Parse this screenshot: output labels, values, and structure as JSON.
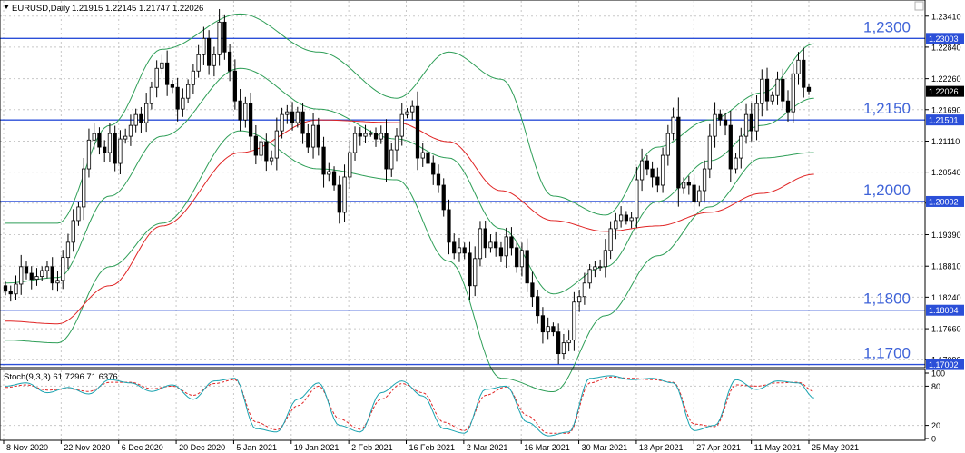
{
  "header": {
    "symbol": "EURUSD,Daily",
    "ohlc": "1.21915 1.22145 1.21747 1.22026"
  },
  "stoch_header": "Stoch(9,3,3) 61.7296 71.6376",
  "colors": {
    "background": "#ffffff",
    "grid": "#c8c8c8",
    "candle": "#000000",
    "level_line": "#2b4fd8",
    "level_text": "#3f63d8",
    "bollinger": "#2e9e57",
    "ma": "#e02424",
    "stoch_main": "#1aa3b0",
    "stoch_signal": "#e02424",
    "price_tag": "#000000"
  },
  "chart_data": {
    "type": "candlestick",
    "symbol": "EURUSD",
    "timeframe": "Daily",
    "price_axis": {
      "ticks": [
        "1.23410",
        "1.22840",
        "1.22260",
        "1.21690",
        "1.21110",
        "1.20540",
        "1.19970",
        "1.19390",
        "1.18810",
        "1.18240",
        "1.17660",
        "1.17090"
      ],
      "range": [
        1.1696,
        1.2369
      ]
    },
    "current_price_label": "1.22026",
    "levels": [
      {
        "price": 1.23,
        "label": "1,2300",
        "tag": "1.23003"
      },
      {
        "price": 1.215,
        "label": "1,2150",
        "tag": "1.21501"
      },
      {
        "price": 1.2,
        "label": "1,2000",
        "tag": "1.20002"
      },
      {
        "price": 1.18,
        "label": "1,1800",
        "tag": "1.18004"
      },
      {
        "price": 1.17,
        "label": "1,1700",
        "tag": "1.17002"
      }
    ],
    "date_labels": [
      "8 Nov 2020",
      "22 Nov 2020",
      "6 Dec 2020",
      "20 Dec 2020",
      "5 Jan 2021",
      "19 Jan 2021",
      "2 Feb 2021",
      "16 Feb 2021",
      "2 Mar 2021",
      "16 Mar 2021",
      "30 Mar 2021",
      "13 Apr 2021",
      "27 Apr 2021",
      "11 May 2021",
      "25 May 2021"
    ],
    "close": [
      1.1835,
      1.183,
      1.1848,
      1.188,
      1.1868,
      1.1857,
      1.1862,
      1.1873,
      1.188,
      1.185,
      1.1855,
      1.1897,
      1.1925,
      1.1965,
      1.199,
      1.206,
      1.2113,
      1.2125,
      1.21,
      1.209,
      1.2125,
      1.207,
      1.2115,
      1.212,
      1.214,
      1.216,
      1.2145,
      1.218,
      1.221,
      1.2245,
      1.2255,
      1.2215,
      1.221,
      1.217,
      1.219,
      1.2215,
      1.224,
      1.227,
      1.23,
      1.225,
      1.227,
      1.233,
      1.2275,
      1.224,
      1.2185,
      1.215,
      1.218,
      1.212,
      1.2085,
      1.211,
      1.2075,
      1.208,
      1.213,
      1.216,
      1.2165,
      1.2145,
      1.2165,
      1.2125,
      1.21,
      1.214,
      1.21,
      1.205,
      1.2055,
      1.203,
      1.198,
      1.2045,
      1.209,
      1.2125,
      1.212,
      1.2125,
      1.2125,
      1.2115,
      1.2125,
      1.206,
      1.2095,
      1.212,
      1.216,
      1.2165,
      1.2175,
      1.208,
      1.209,
      1.207,
      1.205,
      1.203,
      1.1985,
      1.1925,
      1.1905,
      1.1915,
      1.1905,
      1.1845,
      1.1895,
      1.195,
      1.1915,
      1.1925,
      1.1915,
      1.19,
      1.1935,
      1.1915,
      1.188,
      1.191,
      1.185,
      1.1825,
      1.179,
      1.176,
      1.177,
      1.176,
      1.172,
      1.174,
      1.1745,
      1.1815,
      1.1825,
      1.185,
      1.1875,
      1.188,
      1.188,
      1.191,
      1.195,
      1.1965,
      1.1975,
      1.1965,
      1.197,
      1.204,
      1.2075,
      1.206,
      1.2045,
      1.203,
      1.2085,
      1.2125,
      1.2155,
      1.2025,
      1.2035,
      1.203,
      1.2,
      1.202,
      1.206,
      1.212,
      1.216,
      1.215,
      1.214,
      1.206,
      1.208,
      1.212,
      1.216,
      1.213,
      1.218,
      1.2225,
      1.2185,
      1.2195,
      1.2225,
      1.2185,
      1.2165,
      1.2235,
      1.226,
      1.221,
      1.2203
    ],
    "bollinger": {
      "upper": [
        [
          0,
          1.196
        ],
        [
          10,
          1.196
        ],
        [
          20,
          1.214
        ],
        [
          30,
          1.228
        ],
        [
          45,
          1.2345
        ],
        [
          60,
          1.2275
        ],
        [
          75,
          1.219
        ],
        [
          85,
          1.2275
        ],
        [
          95,
          1.2225
        ],
        [
          105,
          1.201
        ],
        [
          115,
          1.1975
        ],
        [
          125,
          1.21
        ],
        [
          135,
          1.215
        ],
        [
          145,
          1.22
        ],
        [
          155,
          1.229
        ]
      ],
      "middle": [
        [
          0,
          1.185
        ],
        [
          10,
          1.186
        ],
        [
          20,
          1.201
        ],
        [
          30,
          1.212
        ],
        [
          45,
          1.2245
        ],
        [
          60,
          1.217
        ],
        [
          75,
          1.2115
        ],
        [
          85,
          1.208
        ],
        [
          95,
          1.195
        ],
        [
          105,
          1.183
        ],
        [
          115,
          1.188
        ],
        [
          125,
          1.2
        ],
        [
          135,
          1.2075
        ],
        [
          145,
          1.214
        ],
        [
          155,
          1.219
        ]
      ],
      "lower": [
        [
          0,
          1.1745
        ],
        [
          10,
          1.174
        ],
        [
          20,
          1.188
        ],
        [
          30,
          1.196
        ],
        [
          45,
          1.213
        ],
        [
          60,
          1.206
        ],
        [
          75,
          1.204
        ],
        [
          85,
          1.189
        ],
        [
          95,
          1.1675
        ],
        [
          105,
          1.165
        ],
        [
          115,
          1.179
        ],
        [
          125,
          1.19
        ],
        [
          135,
          1.199
        ],
        [
          145,
          1.208
        ],
        [
          155,
          1.209
        ]
      ]
    },
    "moving_average": [
      [
        0,
        1.178
      ],
      [
        10,
        1.1775
      ],
      [
        20,
        1.1845
      ],
      [
        30,
        1.1955
      ],
      [
        45,
        1.209
      ],
      [
        60,
        1.215
      ],
      [
        75,
        1.2145
      ],
      [
        85,
        1.211
      ],
      [
        95,
        1.202
      ],
      [
        105,
        1.1965
      ],
      [
        115,
        1.1945
      ],
      [
        125,
        1.1955
      ],
      [
        135,
        1.198
      ],
      [
        145,
        1.2015
      ],
      [
        155,
        1.205
      ]
    ],
    "stochastic": {
      "name": "Stoch(9,3,3)",
      "main": 61.7296,
      "signal": 71.6376,
      "ticks": [
        "100",
        "80",
        "20",
        "0"
      ],
      "range": [
        0,
        100
      ],
      "main_line": [
        [
          0,
          80
        ],
        [
          4,
          85
        ],
        [
          8,
          70
        ],
        [
          12,
          78
        ],
        [
          16,
          68
        ],
        [
          20,
          90
        ],
        [
          24,
          85
        ],
        [
          28,
          72
        ],
        [
          32,
          82
        ],
        [
          36,
          60
        ],
        [
          40,
          88
        ],
        [
          44,
          92
        ],
        [
          48,
          15
        ],
        [
          52,
          10
        ],
        [
          56,
          60
        ],
        [
          60,
          85
        ],
        [
          64,
          20
        ],
        [
          68,
          10
        ],
        [
          72,
          70
        ],
        [
          76,
          88
        ],
        [
          80,
          65
        ],
        [
          84,
          15
        ],
        [
          88,
          8
        ],
        [
          92,
          75
        ],
        [
          96,
          80
        ],
        [
          100,
          25
        ],
        [
          104,
          4
        ],
        [
          108,
          10
        ],
        [
          112,
          92
        ],
        [
          116,
          96
        ],
        [
          120,
          90
        ],
        [
          124,
          92
        ],
        [
          128,
          85
        ],
        [
          132,
          12
        ],
        [
          136,
          20
        ],
        [
          140,
          90
        ],
        [
          144,
          75
        ],
        [
          148,
          88
        ],
        [
          152,
          85
        ],
        [
          155,
          62
        ]
      ],
      "signal_line": [
        [
          0,
          78
        ],
        [
          4,
          82
        ],
        [
          8,
          74
        ],
        [
          12,
          76
        ],
        [
          16,
          72
        ],
        [
          20,
          86
        ],
        [
          24,
          86
        ],
        [
          28,
          76
        ],
        [
          32,
          80
        ],
        [
          36,
          66
        ],
        [
          40,
          84
        ],
        [
          44,
          90
        ],
        [
          48,
          25
        ],
        [
          52,
          13
        ],
        [
          56,
          50
        ],
        [
          60,
          80
        ],
        [
          64,
          30
        ],
        [
          68,
          14
        ],
        [
          72,
          60
        ],
        [
          76,
          84
        ],
        [
          80,
          70
        ],
        [
          84,
          25
        ],
        [
          88,
          12
        ],
        [
          92,
          66
        ],
        [
          96,
          79
        ],
        [
          100,
          35
        ],
        [
          104,
          8
        ],
        [
          108,
          8
        ],
        [
          112,
          85
        ],
        [
          116,
          94
        ],
        [
          120,
          92
        ],
        [
          124,
          90
        ],
        [
          128,
          86
        ],
        [
          132,
          22
        ],
        [
          136,
          18
        ],
        [
          140,
          82
        ],
        [
          144,
          80
        ],
        [
          148,
          85
        ],
        [
          152,
          86
        ],
        [
          155,
          72
        ]
      ]
    }
  }
}
